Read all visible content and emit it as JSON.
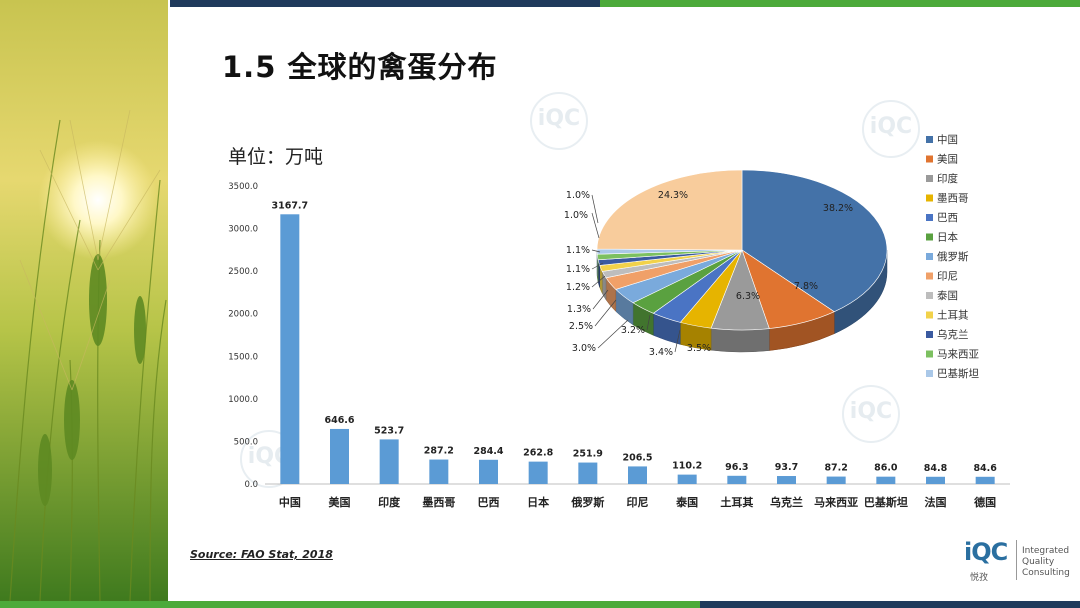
{
  "slide": {
    "title": "1.5 全球的禽蛋分布",
    "unit_label": "单位：万吨",
    "source": "Source: FAO Stat, 2018",
    "logo": {
      "cn": "悦孜",
      "en_lines": [
        "Integrated",
        "Quality",
        "Consulting"
      ]
    }
  },
  "colors": {
    "bar": "#5b9bd5",
    "top_bar_navy": "#1f3a5c",
    "top_bar_green": "#4caa3a"
  },
  "chart_data": [
    {
      "type": "bar",
      "title": "",
      "xlabel": "",
      "ylabel": "",
      "categories": [
        "中国",
        "美国",
        "印度",
        "墨西哥",
        "巴西",
        "日本",
        "俄罗斯",
        "印尼",
        "泰国",
        "土耳其",
        "乌克兰",
        "马来西亚",
        "巴基斯坦",
        "法国",
        "德国"
      ],
      "values": [
        3167.7,
        646.6,
        523.7,
        287.2,
        284.4,
        262.8,
        251.9,
        206.5,
        110.2,
        96.3,
        93.7,
        87.2,
        86.0,
        84.8,
        84.6
      ],
      "value_labels": [
        "3167.7",
        "646.6",
        "523.7",
        "287.2",
        "284.4",
        "262.8",
        "251.9",
        "206.5",
        "110.2",
        "96.3",
        "93.7",
        "87.2",
        "86.0",
        "84.8",
        "84.6"
      ],
      "ylim": [
        0,
        3500
      ],
      "yticks": [
        "0.0",
        "500.0",
        "1000.0",
        "1500.0",
        "2000.0",
        "2500.0",
        "3000.0",
        "3500.0"
      ],
      "grid": false
    },
    {
      "type": "pie",
      "title": "",
      "style": "3d",
      "legend_position": "right",
      "labels": [
        "中国",
        "美国",
        "印度",
        "墨西哥",
        "巴西",
        "日本",
        "俄罗斯",
        "印尼",
        "泰国",
        "土耳其",
        "乌克兰",
        "马来西亚",
        "巴基斯坦",
        ""
      ],
      "values": [
        38.2,
        7.8,
        6.3,
        3.5,
        3.4,
        3.0,
        3.2,
        2.5,
        1.3,
        1.2,
        1.1,
        1.1,
        1.0,
        24.3
      ],
      "value_labels": [
        "38.2%",
        "7.8%",
        "6.3%",
        "3.5%",
        "3.4%",
        "3.0%",
        "3.2%",
        "2.5%",
        "1.3%",
        "1.2%",
        "1.1%",
        "1.1%",
        "1.0%",
        "24.3%"
      ],
      "extra_label": "1.0%",
      "colors": [
        "#4472a8",
        "#e07430",
        "#9a9a9a",
        "#e6b400",
        "#4a74c4",
        "#5aa140",
        "#7aaadc",
        "#f0a068",
        "#bdbdbd",
        "#f2d24a",
        "#3a5aa0",
        "#7cc060",
        "#aac8e8",
        "#f8cc9c"
      ]
    }
  ]
}
